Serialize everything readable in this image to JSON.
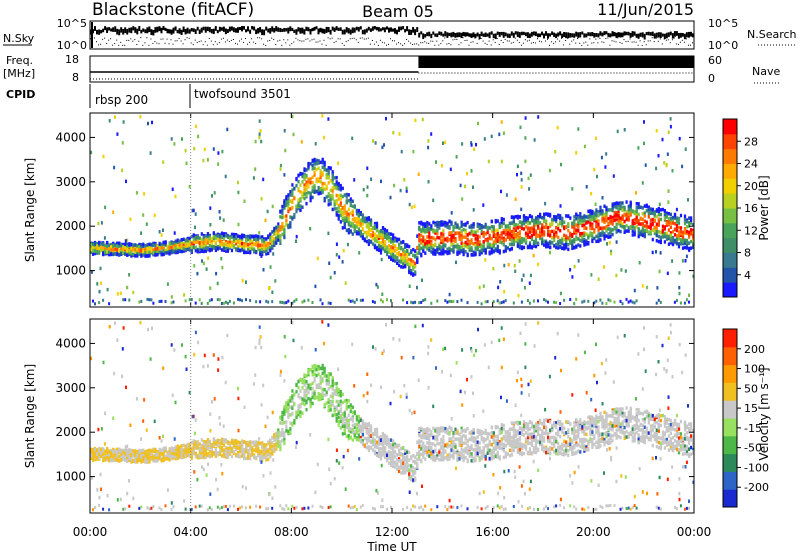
{
  "header": {
    "station": "Blackstone (fitACF)",
    "beam": "Beam 05",
    "date": "11/Jun/2015"
  },
  "top_panels": {
    "nsky_label": "N.Sky",
    "nsky_ticks": [
      "10^5",
      "10^0"
    ],
    "nsearch_label": "N.Search",
    "nsearch_ticks": [
      "10^5",
      "10^0"
    ],
    "freq_label_1": "Freq.",
    "freq_label_2": "[MHz]",
    "freq_ticks": [
      "18",
      "8"
    ],
    "nave_label": "Nave",
    "nave_ticks": [
      "60",
      "0"
    ],
    "cpid_label": "CPID",
    "cpid_segments": [
      {
        "name": "rbsp 200",
        "start_hour": 0
      },
      {
        "name": "twofsound 3501",
        "start_hour": 4
      }
    ]
  },
  "chart_data": [
    {
      "type": "heatmap",
      "title": "Power",
      "ylabel": "Slant Range [km]",
      "xlabel": "",
      "xlim": [
        0,
        24
      ],
      "ylim": [
        180,
        4550
      ],
      "yticks": [
        1000,
        2000,
        3000,
        4000
      ],
      "colorbar": {
        "label": "Power [dB]",
        "ticks": [
          "4",
          "8",
          "12",
          "16",
          "20",
          "24",
          "28"
        ],
        "colors": [
          "#1a1aff",
          "#2255aa",
          "#3a7a90",
          "#3e8e68",
          "#4aa35a",
          "#77c044",
          "#b8d020",
          "#f0d000",
          "#ffaa00",
          "#ff7a00",
          "#ff4400",
          "#ff0000"
        ]
      },
      "main_echo_range_km": {
        "x_hours": [
          0,
          1,
          2,
          3,
          4,
          5,
          6,
          7,
          7.5,
          8,
          8.5,
          9,
          9.5,
          10,
          11,
          12,
          12.9,
          13,
          14,
          15,
          16,
          17,
          18,
          19,
          20,
          21,
          22,
          23,
          24
        ],
        "y_km": [
          1500,
          1480,
          1450,
          1500,
          1600,
          1650,
          1600,
          1550,
          1900,
          2500,
          2900,
          3150,
          2900,
          2400,
          1900,
          1500,
          1150,
          1700,
          1750,
          1700,
          1750,
          1850,
          1900,
          1850,
          2000,
          2200,
          2100,
          1950,
          1800
        ]
      }
    },
    {
      "type": "heatmap",
      "title": "Velocity",
      "ylabel": "Slant Range [km]",
      "xlabel": "Time UT",
      "xlim": [
        0,
        24
      ],
      "ylim": [
        180,
        4550
      ],
      "yticks": [
        1000,
        2000,
        3000,
        4000
      ],
      "xticks": [
        "00:00",
        "04:00",
        "08:00",
        "12:00",
        "16:00",
        "20:00",
        "00:00"
      ],
      "colorbar": {
        "label": "Velocity [m s⁻¹]",
        "ticks": [
          "200",
          "100",
          "50",
          "15",
          "-15",
          "-50",
          "-100",
          "-200"
        ],
        "colors": [
          "#1a2ad0",
          "#2c64c8",
          "#2a8a5a",
          "#4cb848",
          "#98e060",
          "#c8c8c8",
          "#f0c020",
          "#ff9a00",
          "#ff6000",
          "#ff2000"
        ]
      }
    }
  ],
  "colors": {
    "ground_scatter": "#c8c8c8"
  }
}
